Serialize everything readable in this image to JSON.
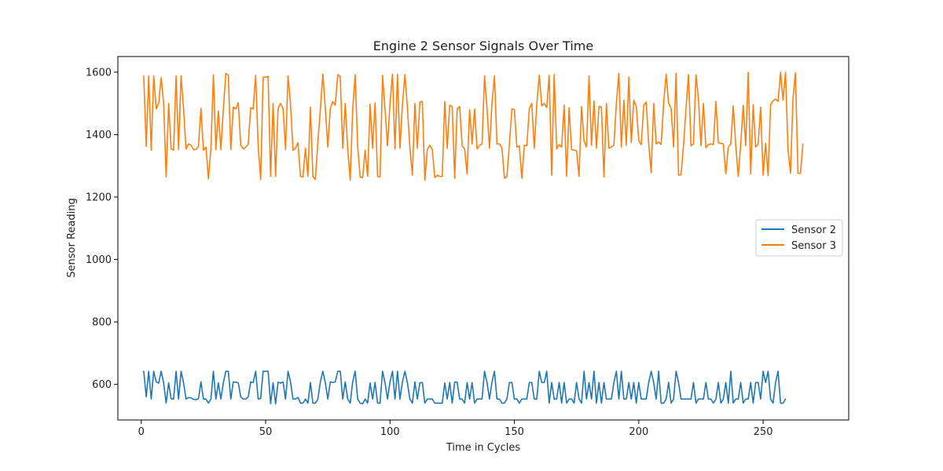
{
  "chart_data": {
    "type": "line",
    "title": "Engine 2 Sensor Signals Over Time",
    "xlabel": "Time in Cycles",
    "ylabel": "Sensor Reading",
    "xlim": [
      -9.4,
      284.4
    ],
    "ylim": [
      486,
      1650
    ],
    "xticks": [
      0,
      50,
      100,
      150,
      200,
      250
    ],
    "yticks": [
      600,
      800,
      1000,
      1200,
      1400,
      1600
    ],
    "grid": false,
    "legend_position": "center-right",
    "x": {
      "start": 1,
      "end": 269,
      "step": 1
    },
    "series": [
      {
        "name": "Sensor 2",
        "color": "#1f77b4",
        "values": [
          642,
          560,
          642,
          553,
          642,
          608,
          604,
          642,
          605,
          540,
          605,
          554,
          553,
          642,
          553,
          642,
          605,
          553,
          558,
          557,
          552,
          551,
          554,
          608,
          553,
          553,
          540,
          553,
          642,
          553,
          605,
          553,
          605,
          642,
          642,
          553,
          608,
          607,
          605,
          560,
          553,
          553,
          560,
          608,
          606,
          642,
          553,
          555,
          642,
          642,
          642,
          538,
          605,
          538,
          607,
          604,
          608,
          553,
          642,
          608,
          553,
          553,
          558,
          540,
          540,
          553,
          540,
          606,
          540,
          540,
          553,
          608,
          642,
          605,
          553,
          608,
          606,
          608,
          642,
          642,
          553,
          608,
          553,
          540,
          608,
          642,
          553,
          540,
          538,
          553,
          540,
          605,
          553,
          606,
          540,
          540,
          642,
          605,
          553,
          608,
          642,
          553,
          642,
          553,
          608,
          642,
          604,
          553,
          540,
          608,
          553,
          605,
          606,
          540,
          553,
          553,
          553,
          540,
          540,
          540,
          540,
          605,
          553,
          606,
          540,
          607,
          607,
          553,
          553,
          540,
          606,
          553,
          606,
          540,
          553,
          553,
          553,
          642,
          606,
          553,
          608,
          642,
          553,
          553,
          540,
          540,
          553,
          606,
          606,
          553,
          553,
          540,
          553,
          553,
          553,
          606,
          606,
          553,
          553,
          642,
          606,
          606,
          642,
          540,
          606,
          553,
          553,
          606,
          540,
          606,
          540,
          553,
          553,
          540,
          606,
          553,
          540,
          642,
          553,
          606,
          553,
          642,
          540,
          606,
          540,
          606,
          553,
          553,
          553,
          606,
          642,
          553,
          642,
          553,
          553,
          606,
          553,
          606,
          540,
          606,
          553,
          553,
          553,
          606,
          642,
          606,
          553,
          642,
          540,
          540,
          553,
          606,
          540,
          553,
          642,
          606,
          553,
          553,
          553,
          553,
          553,
          606,
          540,
          553,
          553,
          553,
          606,
          553,
          553,
          540,
          553,
          606,
          540,
          553,
          606,
          540,
          642,
          540,
          553,
          553,
          606,
          540,
          553,
          553,
          606,
          540,
          606,
          606,
          553,
          642,
          606,
          642,
          553,
          540,
          606,
          642,
          540,
          540,
          553
        ]
      },
      {
        "name": "Sensor 3",
        "color": "#ff7f0e",
        "values": [
          1588,
          1362,
          1588,
          1350,
          1588,
          1482,
          1500,
          1582,
          1500,
          1264,
          1500,
          1355,
          1350,
          1588,
          1352,
          1588,
          1484,
          1354,
          1370,
          1366,
          1352,
          1352,
          1362,
          1484,
          1350,
          1360,
          1258,
          1354,
          1592,
          1352,
          1476,
          1352,
          1480,
          1596,
          1590,
          1352,
          1488,
          1482,
          1502,
          1366,
          1354,
          1360,
          1370,
          1486,
          1482,
          1590,
          1364,
          1256,
          1584,
          1584,
          1586,
          1266,
          1500,
          1266,
          1484,
          1500,
          1484,
          1352,
          1588,
          1500,
          1350,
          1356,
          1374,
          1266,
          1264,
          1356,
          1266,
          1488,
          1266,
          1256,
          1376,
          1480,
          1594,
          1484,
          1360,
          1484,
          1506,
          1494,
          1592,
          1586,
          1356,
          1500,
          1354,
          1254,
          1482,
          1592,
          1364,
          1264,
          1262,
          1350,
          1266,
          1498,
          1356,
          1502,
          1266,
          1264,
          1590,
          1480,
          1364,
          1500,
          1594,
          1354,
          1594,
          1356,
          1496,
          1592,
          1486,
          1356,
          1270,
          1500,
          1356,
          1504,
          1506,
          1254,
          1352,
          1366,
          1352,
          1262,
          1270,
          1266,
          1266,
          1506,
          1356,
          1494,
          1490,
          1260,
          1482,
          1490,
          1364,
          1354,
          1274,
          1480,
          1370,
          1482,
          1354,
          1366,
          1370,
          1588,
          1484,
          1356,
          1500,
          1588,
          1370,
          1370,
          1358,
          1260,
          1266,
          1370,
          1482,
          1480,
          1360,
          1364,
          1260,
          1366,
          1364,
          1484,
          1500,
          1356,
          1496,
          1590,
          1492,
          1500,
          1486,
          1590,
          1270,
          1592,
          1354,
          1368,
          1360,
          1494,
          1266,
          1486,
          1352,
          1350,
          1348,
          1266,
          1490,
          1380,
          1360,
          1588,
          1366,
          1508,
          1356,
          1490,
          1488,
          1264,
          1500,
          1356,
          1360,
          1366,
          1500,
          1596,
          1360,
          1510,
          1366,
          1584,
          1374,
          1510,
          1490,
          1380,
          1368,
          1494,
          1504,
          1370,
          1278,
          1500,
          1370,
          1376,
          1368,
          1500,
          1594,
          1500,
          1484,
          1360,
          1596,
          1270,
          1272,
          1366,
          1484,
          1592,
          1364,
          1370,
          1592,
          1514,
          1364,
          1500,
          1358,
          1368,
          1370,
          1368,
          1506,
          1374,
          1372,
          1370,
          1274,
          1360,
          1370,
          1492,
          1364,
          1266,
          1370,
          1494,
          1364,
          1600,
          1274,
          1496,
          1360,
          1370,
          1488,
          1270,
          1372,
          1268,
          1496,
          1508,
          1514,
          1506,
          1600,
          1510,
          1600,
          1354,
          1276,
          1516,
          1598,
          1276,
          1276,
          1370
        ]
      }
    ]
  }
}
